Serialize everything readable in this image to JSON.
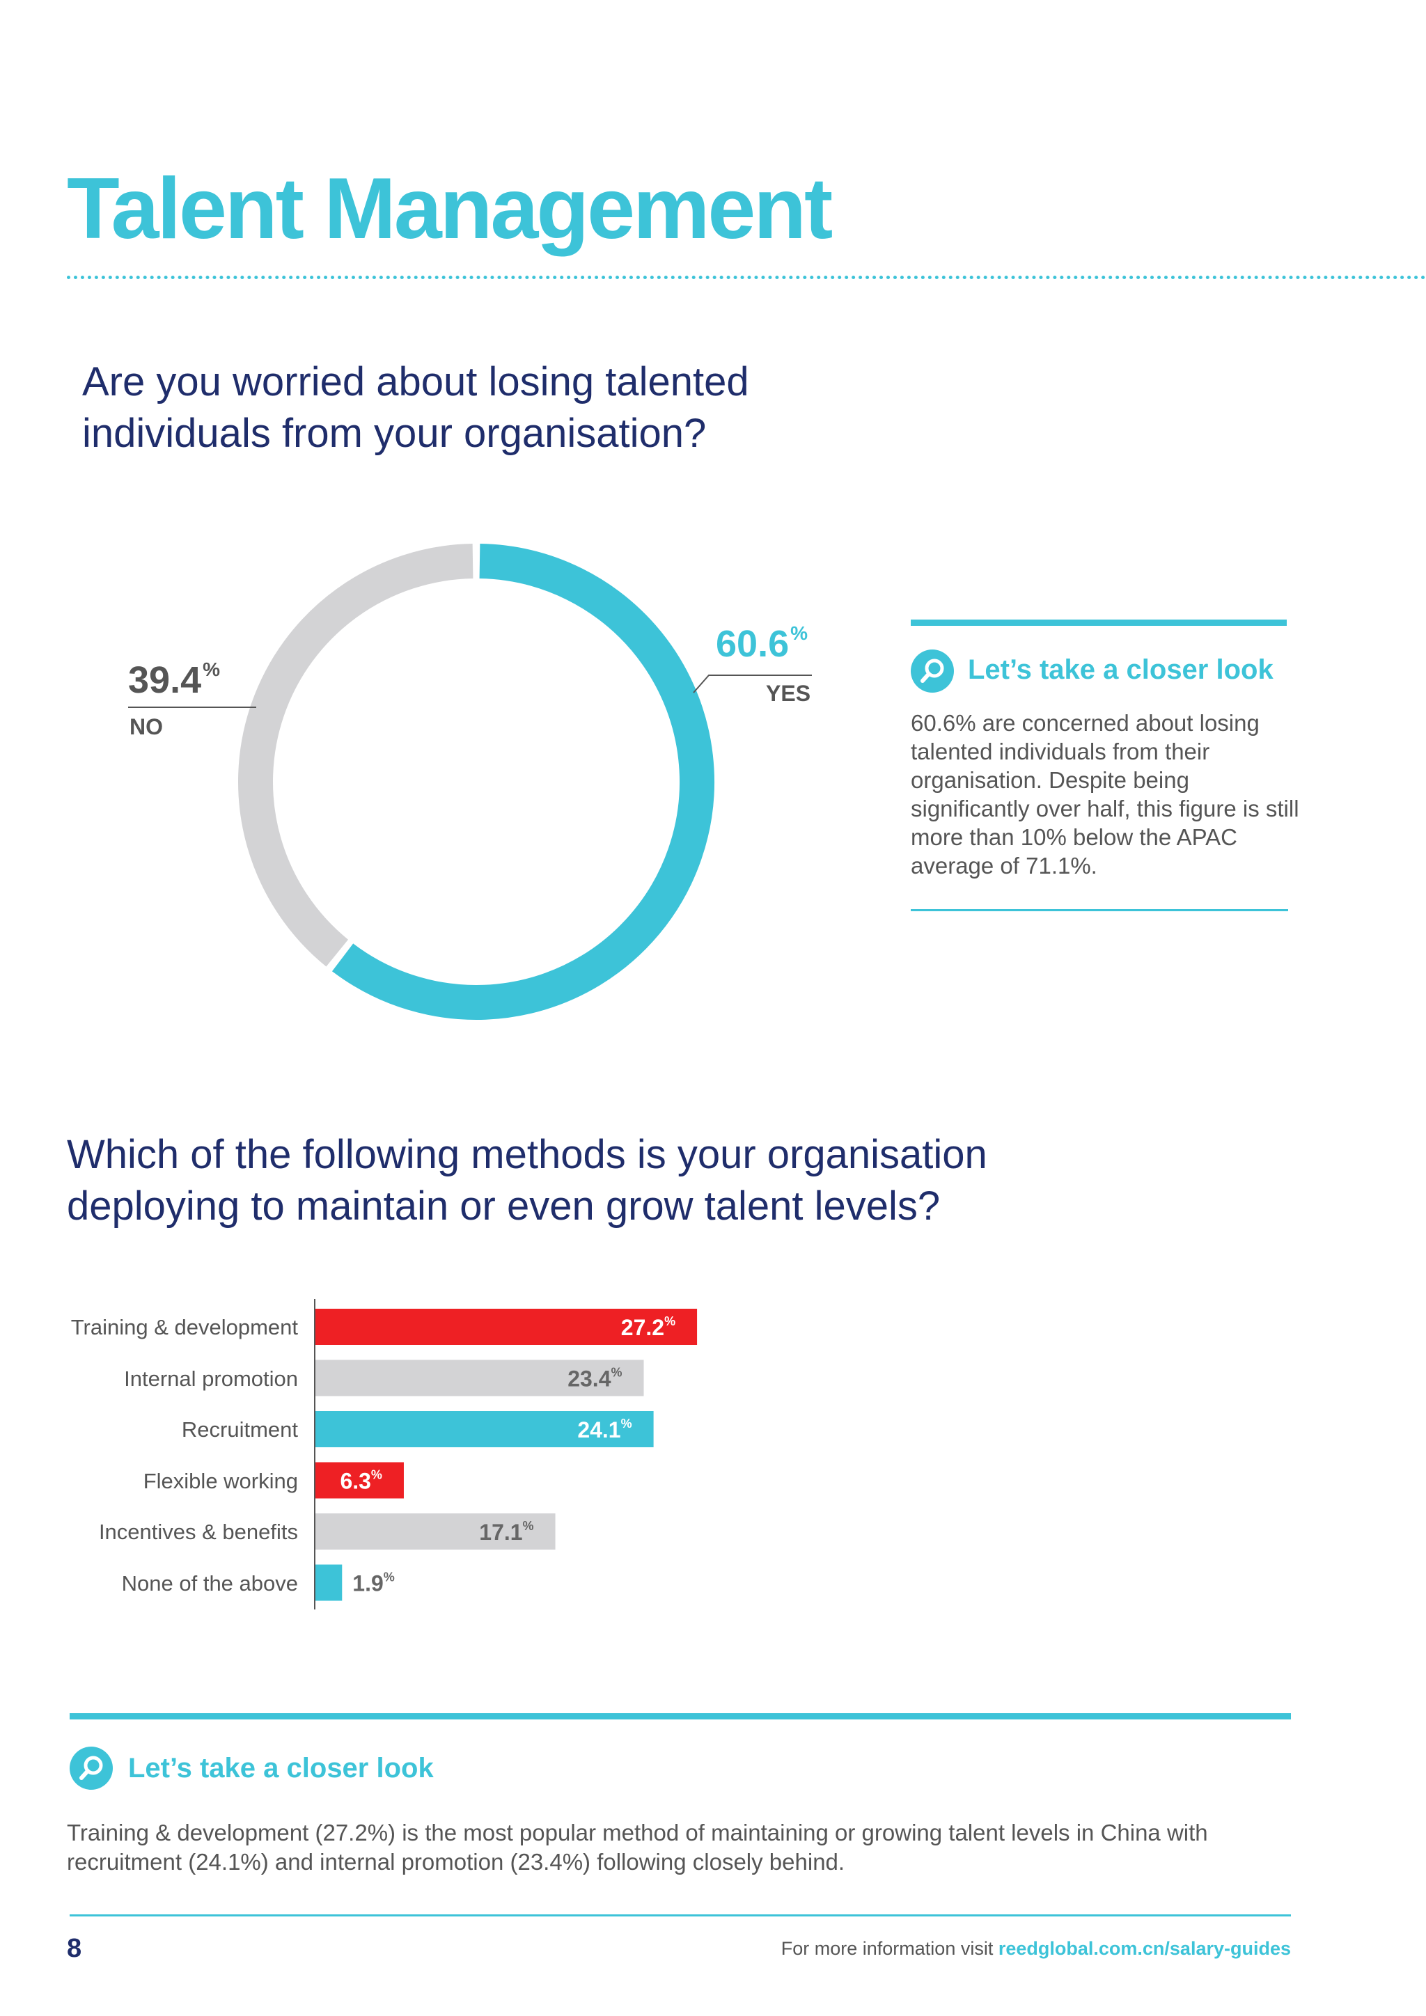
{
  "page": {
    "title": "Talent Management",
    "number": "8",
    "footer_prefix": "For more information visit",
    "footer_link": "reedglobal.com.cn/salary-guides"
  },
  "questions": {
    "q1": "Are you worried about losing talented individuals from your organisation?",
    "q2": "Which of the following methods is your organisation deploying to maintain or even grow talent levels?"
  },
  "closer_look": {
    "title": "Let’s take a closer look",
    "icon": "magnifier-icon",
    "text1": "60.6% are concerned about losing talented individuals from their organisation. Despite being significantly over half, this figure is still more than 10% below the APAC average of 71.1%.",
    "text2": "Training & development (27.2%) is the most popular method of maintaining or growing talent levels in China with recruitment (24.1%) and internal promotion (23.4%) following closely behind."
  },
  "colors": {
    "teal": "#3dc3d8",
    "grey": "#d3d3d5",
    "red": "#ee2024",
    "navy": "#1f2d6b"
  },
  "chart_data": [
    {
      "type": "pie",
      "title": "",
      "slices": [
        {
          "label": "YES",
          "value": 60.6,
          "display": "60.6",
          "unit": "%",
          "color": "#3dc3d8"
        },
        {
          "label": "NO",
          "value": 39.4,
          "display": "39.4",
          "unit": "%",
          "color": "#d3d3d5"
        }
      ]
    },
    {
      "type": "bar",
      "orientation": "horizontal",
      "title": "",
      "xlim": [
        0,
        100
      ],
      "categories": [
        "Training & development",
        "Internal promotion",
        "Recruitment",
        "Flexible working",
        "Incentives & benefits",
        "None of the above"
      ],
      "values": [
        27.2,
        23.4,
        24.1,
        6.3,
        17.1,
        1.9
      ],
      "labels": [
        "27.2",
        "23.4",
        "24.1",
        "6.3",
        "17.1",
        "1.9"
      ],
      "unit": "%",
      "colors": [
        "#ee2024",
        "#d3d3d5",
        "#3dc3d8",
        "#ee2024",
        "#d3d3d5",
        "#3dc3d8"
      ],
      "label_colors": [
        "#ffffff",
        "#666666",
        "#ffffff",
        "#ffffff",
        "#666666",
        "#666666"
      ]
    }
  ]
}
